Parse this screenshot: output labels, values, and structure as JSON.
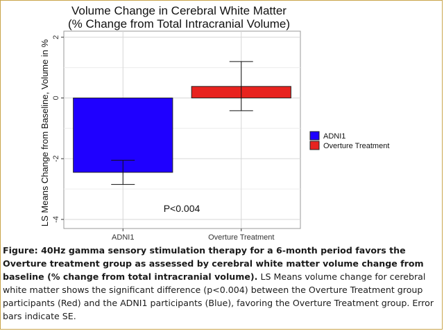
{
  "chart_data": {
    "type": "bar",
    "title": "Volume Change in Cerebral White Matter",
    "subtitle": "(% Change from Total Intracranial Volume)",
    "ylabel": "LS Means Change from Baseline, Volume in %",
    "xlabel": "",
    "categories": [
      "ADNI1",
      "Overture Treatment"
    ],
    "values": [
      -2.45,
      0.38
    ],
    "error_low": [
      -2.85,
      -0.42
    ],
    "error_high": [
      -2.05,
      1.2
    ],
    "colors": [
      "#1f00ff",
      "#e8231f"
    ],
    "ylim": [
      -4.3,
      2.2
    ],
    "yticks": [
      -4,
      -2,
      0,
      2
    ],
    "legend": {
      "position": "right",
      "entries": [
        {
          "label": "ADNI1",
          "color": "#1f00ff"
        },
        {
          "label": "Overture Treatment",
          "color": "#e8231f"
        }
      ]
    },
    "annotation": "P<0.004",
    "grid": true
  },
  "caption": {
    "bold": "Figure: 40Hz gamma sensory stimulation therapy for a 6-month period favors the Overture treatment group as assessed by cerebral white matter volume change from baseline (% change from total intracranial volume).",
    "text": " LS Means volume change for cerebral white matter shows the significant difference (p<0.004) between the Overture Treatment group participants (Red) and the ADNI1 participants (Blue), favoring the Overture Treatment group. Error bars indicate SE."
  }
}
